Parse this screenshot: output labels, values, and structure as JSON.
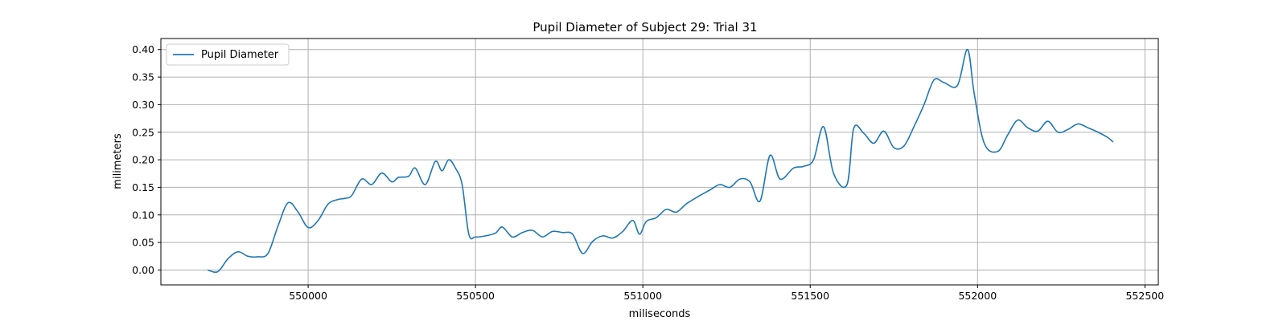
{
  "chart_data": {
    "type": "line",
    "title": "Pupil Diameter of Subject 29: Trial 31",
    "xlabel": "miliseconds",
    "ylabel": "milimeters",
    "xlim": [
      549560,
      552540
    ],
    "ylim": [
      -0.027,
      0.42
    ],
    "xticks": [
      550000,
      550500,
      551000,
      551500,
      552000,
      552500
    ],
    "yticks": [
      0.0,
      0.05,
      0.1,
      0.15,
      0.2,
      0.25,
      0.3,
      0.35,
      0.4
    ],
    "ytick_labels": [
      "0.00",
      "0.05",
      "0.10",
      "0.15",
      "0.20",
      "0.25",
      "0.30",
      "0.35",
      "0.40"
    ],
    "grid": true,
    "legend": "upper left",
    "series_color": "#1f77b4",
    "series": [
      {
        "name": "Pupil Diameter",
        "x": [
          549700,
          549730,
          549760,
          549790,
          549820,
          549850,
          549880,
          549910,
          549940,
          549970,
          550000,
          550030,
          550060,
          550090,
          550110,
          550130,
          550160,
          550190,
          550220,
          550250,
          550270,
          550300,
          550320,
          550350,
          550380,
          550400,
          550420,
          550440,
          550460,
          550480,
          550500,
          550530,
          550560,
          550580,
          550610,
          550640,
          550670,
          550700,
          550730,
          550760,
          550790,
          550820,
          550850,
          550880,
          550910,
          550940,
          550970,
          550990,
          551010,
          551040,
          551070,
          551100,
          551130,
          551170,
          551200,
          551230,
          551260,
          551290,
          551320,
          551350,
          551380,
          551410,
          551450,
          551480,
          551510,
          551540,
          551570,
          551610,
          551630,
          551660,
          551690,
          551720,
          551750,
          551780,
          551810,
          551840,
          551870,
          551900,
          551940,
          551970,
          551990,
          552020,
          552060,
          552090,
          552120,
          552150,
          552180,
          552210,
          552240,
          552270,
          552300,
          552330,
          552360,
          552390,
          552405
        ],
        "values": [
          0.0,
          -0.003,
          0.02,
          0.033,
          0.025,
          0.024,
          0.03,
          0.08,
          0.122,
          0.105,
          0.077,
          0.09,
          0.12,
          0.128,
          0.13,
          0.135,
          0.165,
          0.155,
          0.176,
          0.16,
          0.168,
          0.17,
          0.185,
          0.155,
          0.197,
          0.18,
          0.2,
          0.185,
          0.155,
          0.065,
          0.06,
          0.062,
          0.067,
          0.078,
          0.06,
          0.068,
          0.072,
          0.06,
          0.07,
          0.068,
          0.065,
          0.03,
          0.052,
          0.062,
          0.058,
          0.07,
          0.09,
          0.065,
          0.088,
          0.095,
          0.11,
          0.105,
          0.12,
          0.135,
          0.145,
          0.155,
          0.15,
          0.165,
          0.16,
          0.125,
          0.208,
          0.165,
          0.185,
          0.188,
          0.2,
          0.26,
          0.175,
          0.155,
          0.257,
          0.248,
          0.23,
          0.252,
          0.222,
          0.225,
          0.26,
          0.3,
          0.345,
          0.34,
          0.335,
          0.4,
          0.32,
          0.23,
          0.215,
          0.245,
          0.272,
          0.258,
          0.252,
          0.27,
          0.25,
          0.255,
          0.265,
          0.258,
          0.25,
          0.24,
          0.232
        ]
      }
    ]
  }
}
